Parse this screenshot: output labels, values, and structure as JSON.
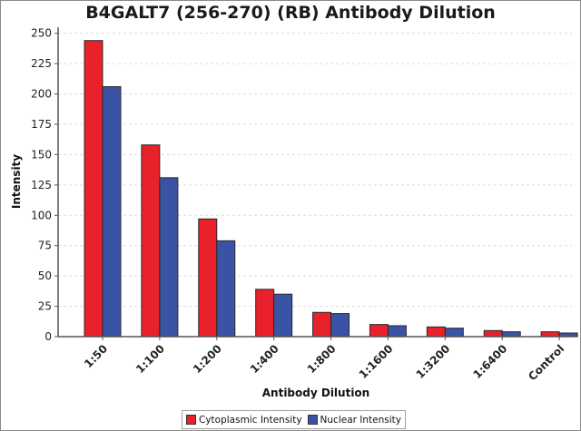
{
  "chart_data": {
    "type": "bar",
    "title": "B4GALT7 (256-270) (RB) Antibody Dilution",
    "xlabel": "Antibody Dilution",
    "ylabel": "Intensity",
    "ylim": [
      0,
      255
    ],
    "yticks": [
      0,
      25,
      50,
      75,
      100,
      125,
      150,
      175,
      200,
      225,
      250
    ],
    "grid": true,
    "legend_position": "bottom",
    "categories": [
      "1:50",
      "1:100",
      "1:200",
      "1:400",
      "1:800",
      "1:1600",
      "1:3200",
      "1:6400",
      "Control"
    ],
    "series": [
      {
        "name": "Cytoplasmic Intensity",
        "color": "#e8212b",
        "values": [
          244,
          158,
          97,
          39,
          20,
          10,
          8,
          5,
          4
        ]
      },
      {
        "name": "Nuclear Intensity",
        "color": "#3a53a4",
        "values": [
          206,
          131,
          79,
          35,
          19,
          9,
          7,
          4,
          3
        ]
      }
    ]
  }
}
